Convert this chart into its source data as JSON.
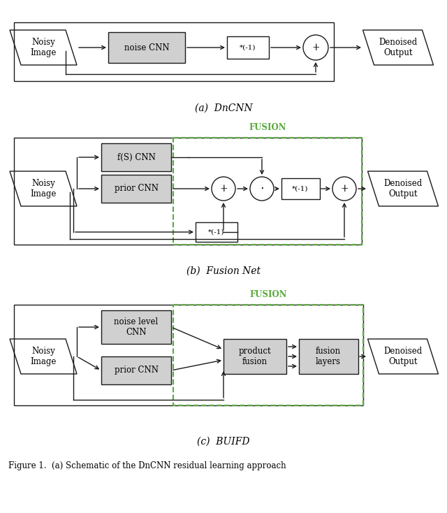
{
  "figure_width": 6.4,
  "figure_height": 7.34,
  "bg_color": "#ffffff",
  "green_dashed": "#5aaa3c",
  "gray_box": "#d0d0d0",
  "caption_a": "(a)  DnCNN",
  "caption_b": "(b)  Fusion Net",
  "caption_c": "(c)  BUIFD",
  "figure_caption": "Figure 1.  (a) Schematic of the DnCNN residual learning approach",
  "arrow_color": "#1a1a1a",
  "text_color": "#000000"
}
